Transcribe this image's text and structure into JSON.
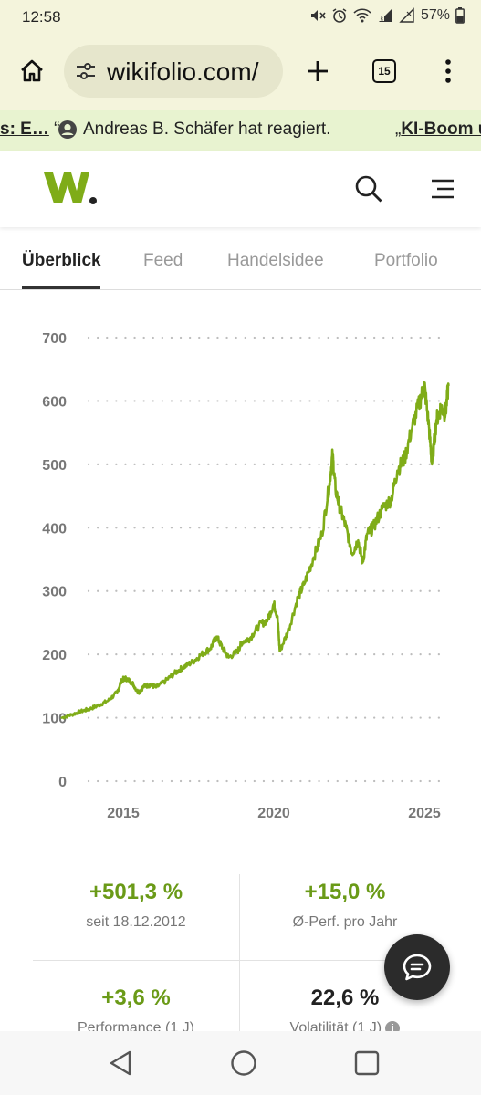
{
  "status_bar": {
    "time": "12:58",
    "battery": "57%",
    "icons": [
      "mute-icon",
      "alarm-icon",
      "wifi-icon",
      "signal-icon",
      "signal-icon",
      "battery-icon"
    ]
  },
  "browser": {
    "url": "wikifolio.com/",
    "tab_count": "15"
  },
  "ticker": {
    "item1_prefix": "s: E…",
    "item1_suffix": " “",
    "item2": "Andreas B. Schäfer hat reagiert.",
    "item3_prefix": "„",
    "item3": "KI-Boom u"
  },
  "site": {
    "brand_color": "#7fac18"
  },
  "tabs": [
    {
      "label": "Überblick",
      "active": true
    },
    {
      "label": "Feed",
      "active": false
    },
    {
      "label": "Handelsidee",
      "active": false
    },
    {
      "label": "Portfolio",
      "active": false
    }
  ],
  "chart_data": {
    "type": "line",
    "title": "",
    "xlabel": "",
    "ylabel": "",
    "ylim": [
      0,
      700
    ],
    "yticks": [
      0,
      100,
      200,
      300,
      400,
      500,
      600,
      700
    ],
    "xticks": [
      "2015",
      "2020",
      "2025"
    ],
    "grid": "horizontal dotted",
    "line_color": "#7fac18",
    "series": [
      {
        "x": [
          2012.96,
          2013.3,
          2013.6,
          2013.9,
          2014.2,
          2014.5,
          2014.8,
          2014.95,
          2015.1,
          2015.3,
          2015.5,
          2015.7,
          2015.9,
          2016.1,
          2016.4,
          2016.7,
          2017.0,
          2017.3,
          2017.6,
          2017.9,
          2018.1,
          2018.3,
          2018.5,
          2018.8,
          2018.95,
          2019.2,
          2019.5,
          2019.8,
          2020.0,
          2020.12,
          2020.2,
          2020.5,
          2020.8,
          2021.0,
          2021.3,
          2021.6,
          2021.85,
          2021.95,
          2022.05,
          2022.2,
          2022.4,
          2022.6,
          2022.8,
          2022.95,
          2023.1,
          2023.3,
          2023.6,
          2023.9,
          2024.1,
          2024.35,
          2024.6,
          2024.85,
          2025.0,
          2025.15,
          2025.25,
          2025.4,
          2025.55,
          2025.7,
          2025.8
        ],
        "y": [
          100,
          105,
          110,
          114,
          120,
          127,
          140,
          160,
          162,
          155,
          140,
          150,
          152,
          148,
          158,
          170,
          180,
          188,
          200,
          210,
          228,
          210,
          195,
          205,
          220,
          225,
          245,
          255,
          280,
          260,
          205,
          240,
          290,
          310,
          350,
          390,
          470,
          515,
          460,
          430,
          400,
          360,
          380,
          345,
          390,
          400,
          430,
          445,
          490,
          510,
          560,
          600,
          625,
          560,
          500,
          570,
          590,
          580,
          625
        ]
      }
    ]
  },
  "stats": [
    {
      "value": "+501,3 %",
      "label": "seit 18.12.2012"
    },
    {
      "value": "+15,0 %",
      "label": "Ø-Perf. pro Jahr"
    },
    {
      "value": "+3,6 %",
      "label": "Performance (1 J)"
    },
    {
      "value": "22,6 %",
      "label": "Volatilität (1 J)"
    }
  ]
}
